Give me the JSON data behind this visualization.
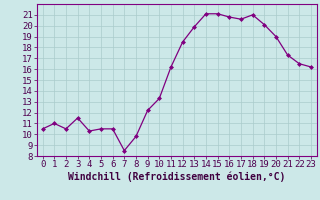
{
  "x": [
    0,
    1,
    2,
    3,
    4,
    5,
    6,
    7,
    8,
    9,
    10,
    11,
    12,
    13,
    14,
    15,
    16,
    17,
    18,
    19,
    20,
    21,
    22,
    23
  ],
  "y": [
    10.5,
    11.0,
    10.5,
    11.5,
    10.3,
    10.5,
    10.5,
    8.5,
    9.8,
    12.2,
    13.3,
    16.2,
    18.5,
    19.9,
    21.1,
    21.1,
    20.8,
    20.6,
    21.0,
    20.1,
    19.0,
    17.3,
    16.5,
    16.2
  ],
  "line_color": "#800080",
  "marker": "D",
  "marker_size": 2,
  "bg_color": "#cce8e8",
  "grid_color": "#aacccc",
  "xlabel": "Windchill (Refroidissement éolien,°C)",
  "xlim": [
    -0.5,
    23.5
  ],
  "ylim": [
    8,
    22
  ],
  "yticks": [
    8,
    9,
    10,
    11,
    12,
    13,
    14,
    15,
    16,
    17,
    18,
    19,
    20,
    21
  ],
  "xticks": [
    0,
    1,
    2,
    3,
    4,
    5,
    6,
    7,
    8,
    9,
    10,
    11,
    12,
    13,
    14,
    15,
    16,
    17,
    18,
    19,
    20,
    21,
    22,
    23
  ],
  "tick_fontsize": 6.5,
  "xlabel_fontsize": 7,
  "spine_color": "#800080"
}
